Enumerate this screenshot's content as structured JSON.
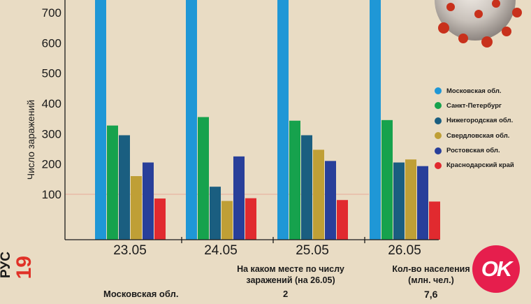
{
  "chart_data": {
    "type": "bar",
    "ylabel": "Число заражений",
    "yticks": [
      100,
      200,
      300,
      400,
      500,
      600,
      700
    ],
    "ylim": [
      0,
      750
    ],
    "reference_line": 100,
    "categories": [
      "23.05",
      "24.05",
      "25.05",
      "26.05"
    ],
    "series": [
      {
        "name": "Московская обл.",
        "color": "#1f97d6",
        "values": [
          750,
          750,
          750,
          750
        ]
      },
      {
        "name": "Санкт-Петербург",
        "color": "#16a24d",
        "values": [
          327,
          355,
          343,
          345
        ]
      },
      {
        "name": "Нижегородская обл.",
        "color": "#1a5e80",
        "values": [
          295,
          125,
          295,
          205
        ]
      },
      {
        "name": "Свердловская обл.",
        "color": "#bf9f36",
        "values": [
          160,
          78,
          247,
          215
        ]
      },
      {
        "name": "Ростовская обл.",
        "color": "#283f9a",
        "values": [
          205,
          225,
          210,
          193
        ]
      },
      {
        "name": "Краснодарский край",
        "color": "#e12a2f",
        "values": [
          86,
          87,
          81,
          76
        ]
      }
    ]
  },
  "side_tag": {
    "word": "РУС",
    "number": "19"
  },
  "table": {
    "rank_header": "На каком месте по числу заражений (на 26.05)",
    "population_header": "Кол-во населения (млн. чел.)",
    "row": {
      "region": "Московская обл.",
      "rank": "2",
      "population": "7,6"
    }
  },
  "logo": {
    "text": "OK",
    "color": "#e61e4d"
  }
}
